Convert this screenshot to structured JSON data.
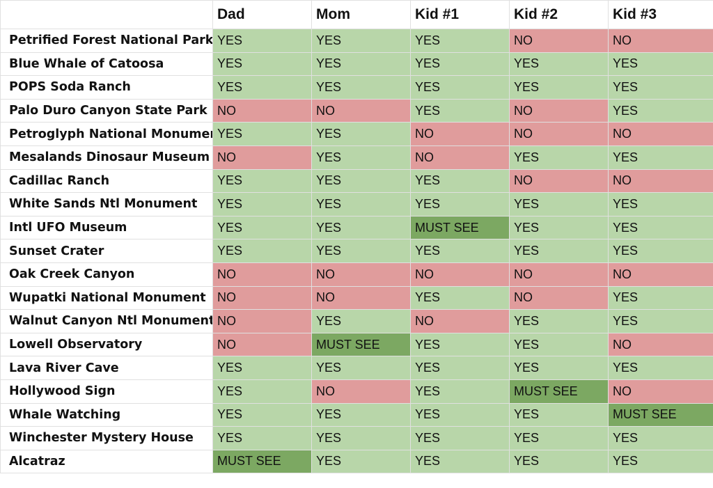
{
  "colors": {
    "yes": "#b8d6a9",
    "no": "#e09c9c",
    "must_see": "#7ca862"
  },
  "headers": [
    "",
    "Dad",
    "Mom",
    "Kid #1",
    "Kid #2",
    "Kid #3"
  ],
  "rows": [
    {
      "attraction": "Petrified Forest National Park",
      "votes": [
        "YES",
        "YES",
        "YES",
        "NO",
        "NO"
      ]
    },
    {
      "attraction": "Blue Whale of Catoosa",
      "votes": [
        "YES",
        "YES",
        "YES",
        "YES",
        "YES"
      ]
    },
    {
      "attraction": "POPS Soda Ranch",
      "votes": [
        "YES",
        "YES",
        "YES",
        "YES",
        "YES"
      ]
    },
    {
      "attraction": "Palo Duro Canyon State Park",
      "votes": [
        "NO",
        "NO",
        "YES",
        "NO",
        "YES"
      ]
    },
    {
      "attraction": "Petroglyph National Monument",
      "votes": [
        "YES",
        "YES",
        "NO",
        "NO",
        "NO"
      ]
    },
    {
      "attraction": "Mesalands Dinosaur Museum",
      "votes": [
        "NO",
        "YES",
        "NO",
        "YES",
        "YES"
      ]
    },
    {
      "attraction": "Cadillac Ranch",
      "votes": [
        "YES",
        "YES",
        "YES",
        "NO",
        "NO"
      ]
    },
    {
      "attraction": "White Sands Ntl Monument",
      "votes": [
        "YES",
        "YES",
        "YES",
        "YES",
        "YES"
      ]
    },
    {
      "attraction": "Intl UFO Museum",
      "votes": [
        "YES",
        "YES",
        "MUST SEE",
        "YES",
        "YES"
      ]
    },
    {
      "attraction": "Sunset Crater",
      "votes": [
        "YES",
        "YES",
        "YES",
        "YES",
        "YES"
      ]
    },
    {
      "attraction": "Oak Creek Canyon",
      "votes": [
        "NO",
        "NO",
        "NO",
        "NO",
        "NO"
      ]
    },
    {
      "attraction": "Wupatki National Monument",
      "votes": [
        "NO",
        "NO",
        "YES",
        "NO",
        "YES"
      ]
    },
    {
      "attraction": "Walnut Canyon Ntl Monument",
      "votes": [
        "NO",
        "YES",
        "NO",
        "YES",
        "YES"
      ]
    },
    {
      "attraction": "Lowell Observatory",
      "votes": [
        "NO",
        "MUST SEE",
        "YES",
        "YES",
        "NO"
      ]
    },
    {
      "attraction": "Lava River Cave",
      "votes": [
        "YES",
        "YES",
        "YES",
        "YES",
        "YES"
      ]
    },
    {
      "attraction": "Hollywood Sign",
      "votes": [
        "YES",
        "NO",
        "YES",
        "MUST SEE",
        "NO"
      ]
    },
    {
      "attraction": "Whale Watching",
      "votes": [
        "YES",
        "YES",
        "YES",
        "YES",
        "MUST SEE"
      ]
    },
    {
      "attraction": "Winchester Mystery House",
      "votes": [
        "YES",
        "YES",
        "YES",
        "YES",
        "YES"
      ]
    },
    {
      "attraction": "Alcatraz",
      "votes": [
        "MUST SEE",
        "YES",
        "YES",
        "YES",
        "YES"
      ]
    }
  ]
}
